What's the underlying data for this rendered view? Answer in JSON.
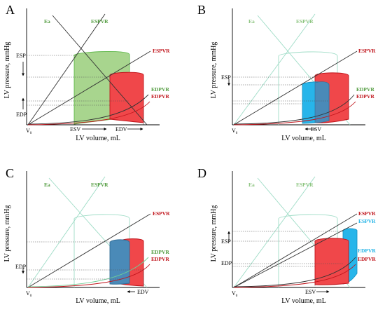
{
  "panels": [
    {
      "letter": "A",
      "ylabel": "LV pressure, mmHg",
      "xlabel": "LV volume, mL",
      "labels": {
        "ea": "Ea",
        "espvr_green": "ESPVR",
        "espvr_red": "ESPVR",
        "edpvr_green": "EDPVR",
        "edpvr_red": "EDPVR",
        "esp": "ESP",
        "edp": "EDP",
        "v0": "V",
        "v0_sub": "0",
        "esv": "ESV",
        "edv": "EDV"
      }
    },
    {
      "letter": "B",
      "ylabel": "LV pressure, mmHg",
      "xlabel": "LV volume, mL",
      "labels": {
        "ea": "Ea",
        "espvr_green": "ESPVR",
        "espvr_red": "ESPVR",
        "edpvr_green": "EDPVR",
        "edpvr_red": "EDPVR",
        "esp": "ESP",
        "v0": "V",
        "v0_sub": "0",
        "esv": "ESV"
      }
    },
    {
      "letter": "C",
      "ylabel": "LV pressure, mmHg",
      "xlabel": "LV volume, mL",
      "labels": {
        "ea": "Ea",
        "espvr_green": "ESPVR",
        "espvr_red": "ESPVR",
        "edpvr_green": "EDPVR",
        "edpvr_red": "EDPVR",
        "edp": "EDP",
        "v0": "V",
        "v0_sub": "0",
        "edv": "EDV"
      }
    },
    {
      "letter": "D",
      "ylabel": "LV pressure, mmHg",
      "xlabel": "LV volume, mL",
      "labels": {
        "ea": "Ea",
        "espvr_green": "ESPVR",
        "espvr_red": "ESPVR",
        "espvr_blue": "ESPVR",
        "edpvr_blue": "EDPVR",
        "edpvr_red": "EDPVR",
        "esp": "ESP",
        "edp": "EDP",
        "v0": "V",
        "v0_sub": "0",
        "esv": "ESV"
      }
    }
  ],
  "colors": {
    "green_fill": "#a8d58e",
    "red_fill": "#f0474a",
    "blue_fill": "#27b5ea",
    "overlap_fill": "#4a8ab8",
    "green_text": "#4f9a3c",
    "red_text": "#c0141b",
    "blue_text": "#22b3e6"
  }
}
